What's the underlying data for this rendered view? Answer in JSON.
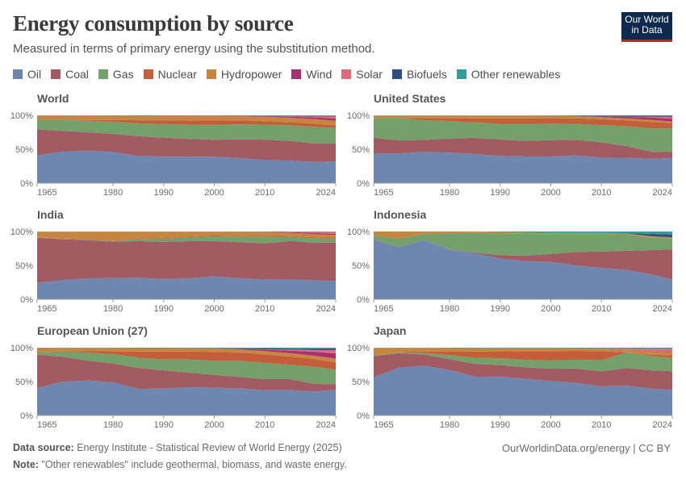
{
  "header": {
    "title": "Energy consumption by source",
    "subtitle": "Measured in terms of primary energy using the substitution method.",
    "logo_text": [
      "Our World",
      "in Data"
    ]
  },
  "footer": {
    "source_label": "Data source:",
    "source_text": "Energy Institute - Statistical Review of World Energy (2025)",
    "note_label": "Note:",
    "note_text": "\"Other renewables\" include geothermal, biomass, and waste energy.",
    "url": "OurWorldinData.org/energy | CC BY"
  },
  "chart_data": {
    "type": "area",
    "stacked": true,
    "relative": true,
    "legend_position": "top",
    "grid": false,
    "ylim": [
      0,
      100
    ],
    "y_ticks": [
      "0%",
      "50%",
      "100%"
    ],
    "x_ticks": [
      "1965",
      "1980",
      "1990",
      "2000",
      "2010",
      "2024"
    ],
    "xlim": [
      1965,
      2024
    ],
    "x": [
      1965,
      1970,
      1975,
      1980,
      1985,
      1990,
      1995,
      2000,
      2005,
      2010,
      2015,
      2020,
      2024
    ],
    "sources": [
      {
        "name": "Oil",
        "color": "#6d87b0"
      },
      {
        "name": "Coal",
        "color": "#a25b62"
      },
      {
        "name": "Gas",
        "color": "#74a06b"
      },
      {
        "name": "Nuclear",
        "color": "#c45d39"
      },
      {
        "name": "Hydropower",
        "color": "#c8853d"
      },
      {
        "name": "Wind",
        "color": "#a8306f"
      },
      {
        "name": "Solar",
        "color": "#e0697a"
      },
      {
        "name": "Biofuels",
        "color": "#2f4f7e"
      },
      {
        "name": "Other renewables",
        "color": "#2f9e98"
      }
    ],
    "panels": [
      {
        "title": "World",
        "series": [
          [
            41,
            46,
            48,
            46,
            40,
            39,
            39,
            39,
            37,
            34,
            33,
            31,
            32
          ],
          [
            38,
            31,
            27,
            27,
            29,
            28,
            26,
            25,
            28,
            30,
            29,
            27,
            26
          ],
          [
            14,
            16,
            17,
            18,
            19,
            20,
            21,
            22,
            22,
            22,
            23,
            24.5,
            23
          ],
          [
            0.2,
            0.4,
            1.3,
            2.6,
            4.6,
            5.5,
            5.9,
            6.3,
            5.8,
            5.0,
            4.3,
            4.3,
            4.0
          ],
          [
            6,
            6,
            6.3,
            6.3,
            6.6,
            6.6,
            7,
            6.8,
            6.3,
            6.5,
            6.7,
            6.9,
            6.4
          ],
          [
            0,
            0,
            0,
            0,
            0,
            0,
            0,
            0.05,
            0.2,
            0.7,
            1.4,
            2.6,
            3.4
          ],
          [
            0,
            0,
            0,
            0,
            0,
            0,
            0,
            0,
            0,
            0.1,
            0.4,
            1.4,
            3.0
          ],
          [
            0,
            0,
            0,
            0,
            0,
            0,
            0,
            0.1,
            0.2,
            0.5,
            0.6,
            0.6,
            0.7
          ],
          [
            0.5,
            0.5,
            0.5,
            0.5,
            0.6,
            0.7,
            0.8,
            0.8,
            0.8,
            0.9,
            1.0,
            1.1,
            1.0
          ]
        ]
      },
      {
        "title": "United States",
        "series": [
          [
            44,
            44,
            46,
            45,
            43,
            40,
            39,
            39,
            40,
            37,
            37,
            35,
            37
          ],
          [
            23,
            19,
            18,
            21,
            24,
            24,
            23,
            24,
            23,
            22,
            17,
            10,
            9
          ],
          [
            29,
            33,
            29,
            26,
            23,
            23,
            25,
            24,
            23,
            25,
            29,
            34,
            34
          ],
          [
            0.1,
            0.4,
            3,
            4,
            6,
            8,
            8,
            8,
            8,
            8.5,
            8.5,
            9,
            8
          ],
          [
            3.5,
            3.5,
            4,
            4,
            4,
            4,
            4,
            3.5,
            3,
            3,
            3,
            3,
            2.4
          ],
          [
            0,
            0,
            0,
            0,
            0,
            0,
            0,
            0.1,
            0.3,
            1,
            2,
            3.5,
            4
          ],
          [
            0,
            0,
            0,
            0,
            0,
            0,
            0,
            0,
            0,
            0.1,
            0.5,
            1.5,
            3
          ],
          [
            0,
            0,
            0,
            0,
            0,
            0,
            0,
            0.3,
            0.6,
            1.2,
            1.3,
            1.2,
            1.5
          ],
          [
            0.2,
            0.2,
            0.3,
            0.3,
            0.4,
            0.4,
            0.4,
            0.4,
            0.4,
            0.4,
            0.5,
            0.5,
            0.5
          ]
        ]
      },
      {
        "title": "India",
        "series": [
          [
            24,
            28,
            31,
            31,
            32,
            30,
            31,
            34,
            31,
            29,
            29,
            28,
            27
          ],
          [
            67,
            60,
            56,
            53,
            54,
            55,
            55,
            52,
            53,
            54,
            57,
            56,
            57
          ],
          [
            0.3,
            0.5,
            1,
            1,
            3,
            5,
            6,
            7,
            8,
            10,
            6,
            6.5,
            6
          ],
          [
            0,
            0.5,
            0.8,
            0.8,
            1,
            1,
            1,
            1.3,
            1,
            1,
            1.2,
            1.3,
            1.2
          ],
          [
            8.5,
            10,
            11,
            13,
            10,
            9,
            7,
            5.5,
            6,
            5.5,
            5,
            5,
            3.8
          ],
          [
            0,
            0,
            0,
            0,
            0,
            0,
            0,
            0.1,
            0.3,
            0.6,
            1,
            1.5,
            1.6
          ],
          [
            0,
            0,
            0,
            0,
            0,
            0,
            0,
            0,
            0,
            0,
            0.3,
            1.7,
            3
          ],
          [
            0,
            0,
            0,
            0,
            0,
            0,
            0,
            0,
            0,
            0,
            0.1,
            0.2,
            0.3
          ],
          [
            0.2,
            0.2,
            0.2,
            0.2,
            0.2,
            0.2,
            0.3,
            0.3,
            0.3,
            0.3,
            0.3,
            0.4,
            0.4
          ]
        ]
      },
      {
        "title": "Indonesia",
        "series": [
          [
            87,
            77,
            87,
            73,
            68,
            60,
            56,
            55,
            50,
            46,
            43,
            36,
            29
          ],
          [
            1,
            0.3,
            0.2,
            0.3,
            1,
            5,
            8,
            12,
            20,
            24,
            28,
            36,
            44
          ],
          [
            6,
            12,
            9,
            24,
            29,
            32,
            32,
            29,
            26,
            26,
            24,
            18,
            16
          ],
          [
            0,
            0,
            0,
            0,
            0,
            0,
            0,
            0,
            0,
            0,
            0,
            0,
            0
          ],
          [
            6,
            10,
            3.5,
            2.5,
            2,
            2,
            2,
            2,
            2,
            1.5,
            1.3,
            2,
            1.5
          ],
          [
            0,
            0,
            0,
            0,
            0,
            0,
            0,
            0,
            0,
            0,
            0,
            0.1,
            0.1
          ],
          [
            0,
            0,
            0,
            0,
            0,
            0,
            0,
            0,
            0,
            0,
            0,
            0.1,
            0.3
          ],
          [
            0,
            0,
            0,
            0,
            0,
            0,
            0,
            0,
            0,
            0,
            0.5,
            3.5,
            4
          ],
          [
            0,
            0,
            0,
            0,
            0,
            1,
            1.5,
            2,
            2,
            2,
            2.5,
            3.5,
            4.5
          ]
        ]
      },
      {
        "title": "European Union (27)",
        "series": [
          [
            40,
            50,
            53,
            49,
            39,
            40,
            42,
            41,
            40,
            37,
            37,
            35,
            38
          ],
          [
            48,
            37,
            30,
            28,
            31,
            27,
            22,
            19,
            17,
            16,
            16,
            11,
            8
          ],
          [
            3,
            7,
            12,
            14,
            15,
            16,
            19,
            21,
            24,
            24,
            21,
            25,
            21
          ],
          [
            0.5,
            1,
            2,
            4,
            9,
            12,
            12,
            13,
            12.5,
            12,
            12,
            11,
            11
          ],
          [
            6,
            5,
            5,
            5,
            5,
            5,
            5,
            5,
            4.5,
            5,
            5,
            5,
            5.5
          ],
          [
            0,
            0,
            0,
            0,
            0,
            0,
            0.1,
            0.3,
            1,
            2,
            3.5,
            6,
            7.5
          ],
          [
            0,
            0,
            0,
            0,
            0,
            0,
            0,
            0,
            0.1,
            0.5,
            1.5,
            2.5,
            5
          ],
          [
            0,
            0,
            0,
            0,
            0,
            0,
            0,
            0.1,
            0.5,
            1.5,
            1.5,
            2,
            2
          ],
          [
            0.5,
            0.5,
            0.5,
            0.5,
            0.6,
            0.6,
            0.7,
            0.8,
            0.9,
            1,
            1.5,
            1.5,
            1.5
          ]
        ]
      },
      {
        "title": "Japan",
        "series": [
          [
            56,
            70,
            75,
            67,
            57,
            57,
            54,
            51,
            48,
            42,
            44,
            39,
            37
          ],
          [
            31,
            21,
            17,
            16,
            19,
            17,
            17,
            18,
            21,
            22,
            26,
            27,
            27
          ],
          [
            1,
            1.5,
            2.5,
            6,
            9,
            10,
            11,
            12,
            13,
            16,
            23,
            21,
            19
          ],
          [
            0,
            0.5,
            2,
            5,
            9,
            10,
            13,
            14,
            13,
            13,
            0.2,
            2,
            4
          ],
          [
            11,
            6,
            5.5,
            5.5,
            5,
            4.5,
            4,
            4,
            3.5,
            3.5,
            4,
            4,
            4
          ],
          [
            0,
            0,
            0,
            0,
            0,
            0,
            0,
            0,
            0.1,
            0.3,
            0.4,
            0.4,
            0.5
          ],
          [
            0,
            0,
            0,
            0,
            0,
            0,
            0,
            0,
            0.1,
            0.3,
            1.5,
            4,
            5
          ],
          [
            0,
            0,
            0,
            0,
            0,
            0,
            0,
            0,
            0,
            0,
            0.1,
            0.2,
            0.2
          ],
          [
            0.3,
            0.3,
            0.3,
            0.5,
            0.8,
            1,
            1,
            1,
            1,
            1,
            1,
            1.5,
            1.5
          ]
        ]
      }
    ]
  }
}
